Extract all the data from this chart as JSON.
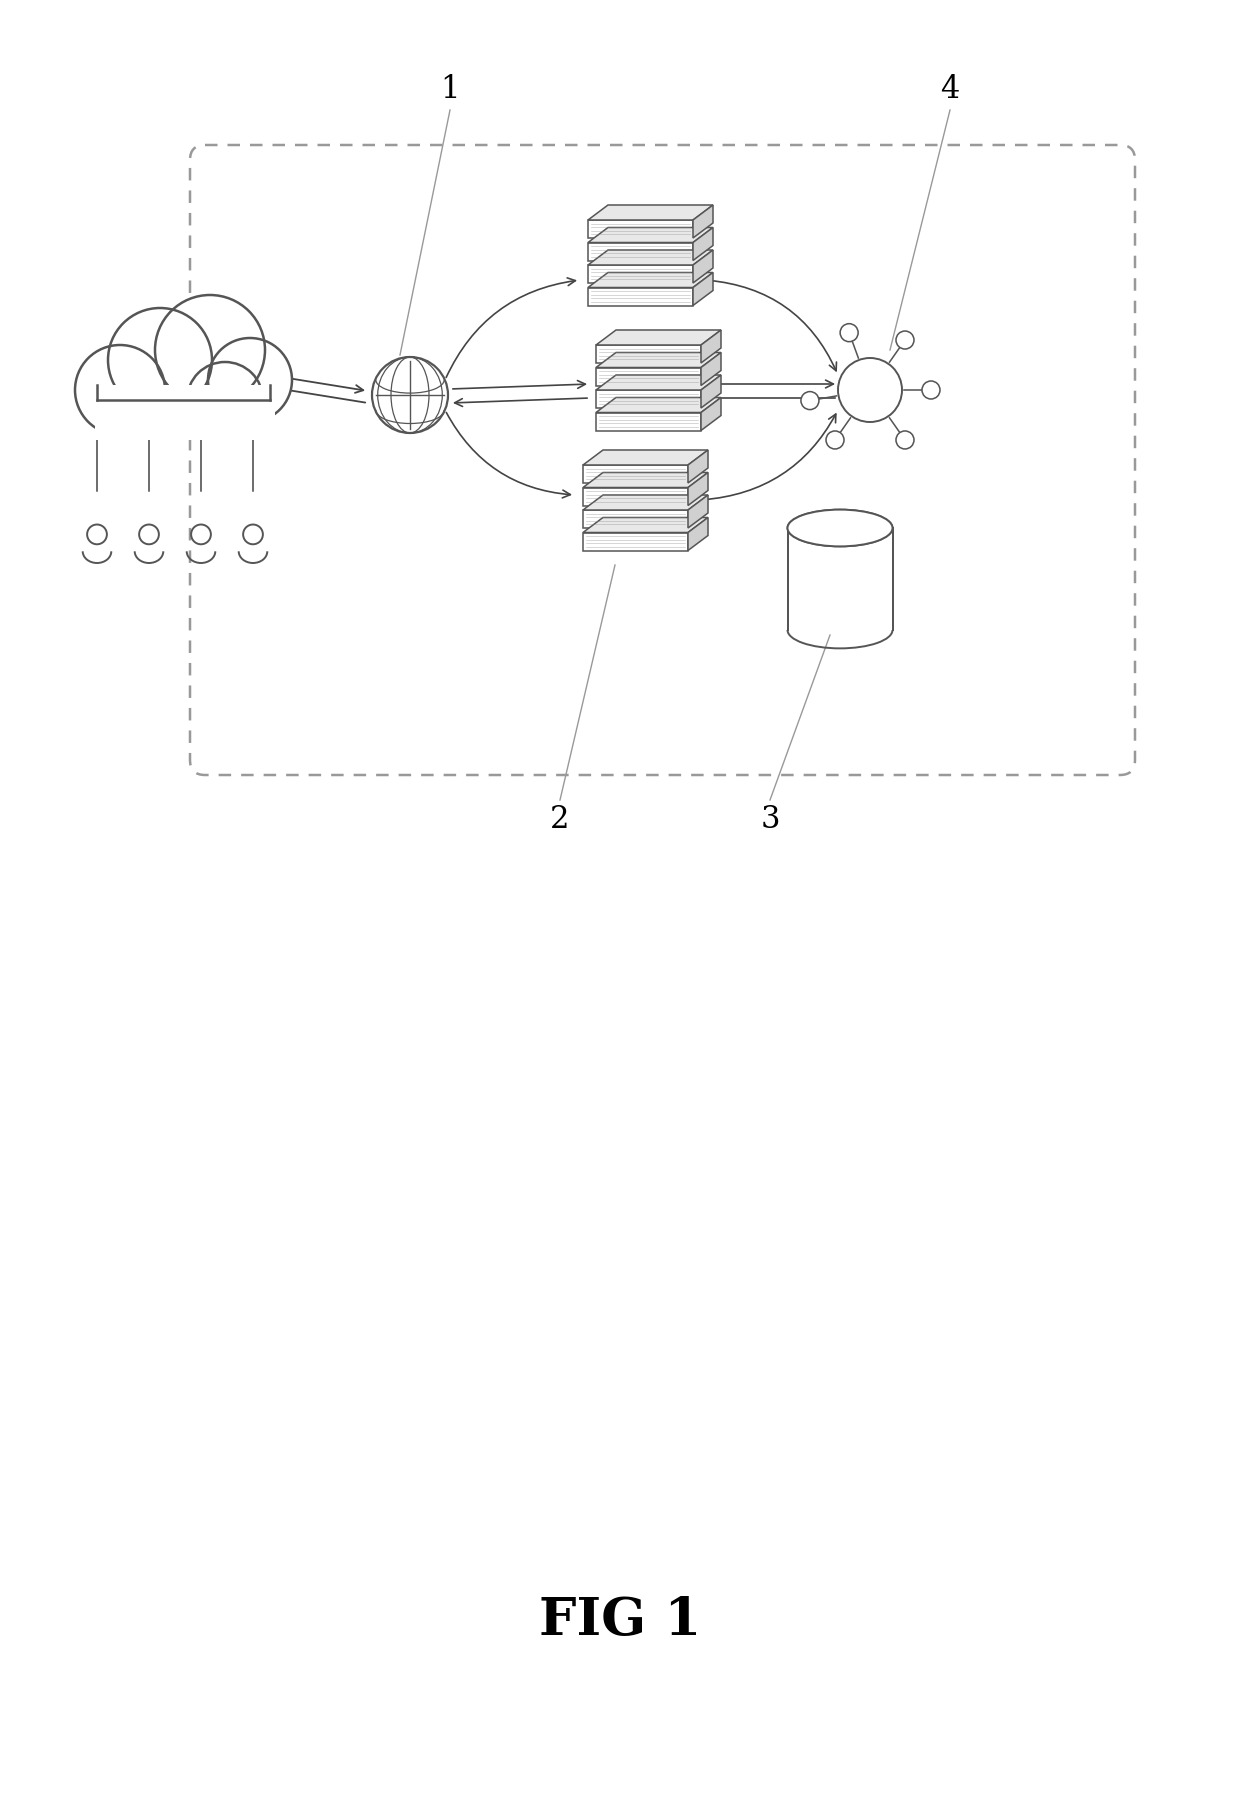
{
  "fig_label": "FIG 1",
  "background_color": "#ffffff",
  "line_color": "#555555",
  "arrow_color": "#444444",
  "label_1": "1",
  "label_2": "2",
  "label_3": "3",
  "label_4": "4",
  "figsize": [
    12.4,
    17.95
  ],
  "dpi": 100
}
